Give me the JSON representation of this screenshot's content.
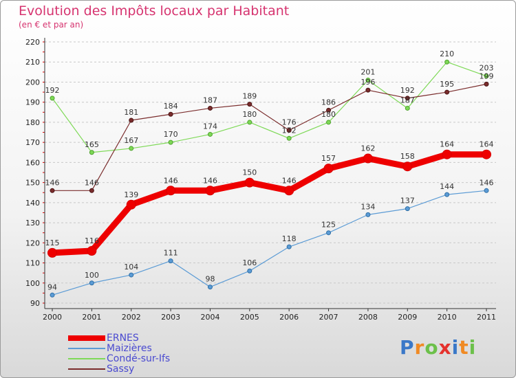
{
  "title": "Evolution des Impôts locaux par Habitant",
  "subtitle": "(en € et par an)",
  "brand": "Proxiti",
  "chart_data": {
    "type": "line",
    "x": [
      "2000",
      "2001",
      "2002",
      "2003",
      "2004",
      "2005",
      "2006",
      "2007",
      "2008",
      "2009",
      "2010",
      "2011"
    ],
    "ylim": [
      90,
      220
    ],
    "yticks": [
      90,
      100,
      110,
      120,
      130,
      140,
      150,
      160,
      170,
      180,
      190,
      200,
      210,
      220
    ],
    "grid": "horizontal dashed",
    "legend": "bottom-left",
    "series": [
      {
        "name": "ERNES",
        "color": "#ee0000",
        "values": [
          115,
          116,
          139,
          146,
          146,
          150,
          146,
          157,
          162,
          158,
          164,
          164
        ]
      },
      {
        "name": "Maizières",
        "color": "#5b9bd5",
        "values": [
          94,
          100,
          104,
          111,
          98,
          106,
          118,
          125,
          134,
          137,
          144,
          146
        ]
      },
      {
        "name": "Condé-sur-Ifs",
        "color": "#7ed957",
        "values": [
          192,
          165,
          167,
          170,
          174,
          180,
          172,
          180,
          201,
          187,
          210,
          203
        ]
      },
      {
        "name": "Sassy",
        "color": "#7a2c2c",
        "values": [
          146,
          146,
          181,
          184,
          187,
          189,
          176,
          186,
          196,
          192,
          195,
          199
        ]
      }
    ]
  }
}
